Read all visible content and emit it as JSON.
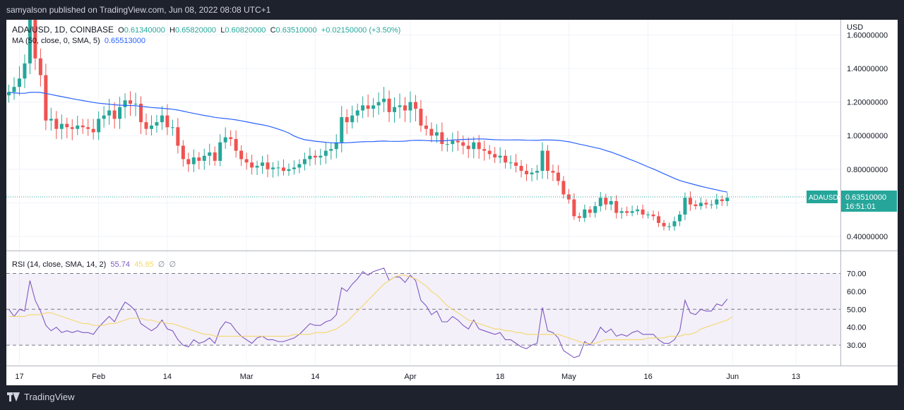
{
  "header": {
    "published": "samyalson published on TradingView.com, Jun 08, 2022 08:08 UTC+1"
  },
  "footer": {
    "brand": "TradingView"
  },
  "chart_data": [
    {
      "type": "candlestick",
      "legend": {
        "symbol": "ADA/USD, 1D, COINBASE",
        "o_label": "O",
        "o": "0.61340000",
        "h_label": "H",
        "h": "0.65820000",
        "l_label": "L",
        "l": "0.60820000",
        "c_label": "C",
        "c": "0.63510000",
        "change": "+0.02150000 (+3.50%)",
        "ma_label": "MA (50, close, 0, SMA, 5)",
        "ma_value": "0.65513000"
      },
      "axis_currency": "USD",
      "y_ticks": [
        0.4,
        0.6,
        0.8,
        1.0,
        1.2,
        1.4,
        1.6
      ],
      "y_tick_labels": [
        "0.40000000",
        "0.60000000",
        "0.80000000",
        "1.00000000",
        "1.20000000",
        "1.40000000",
        "1.60000000"
      ],
      "ylim": [
        0.32,
        1.69
      ],
      "last_price_label": "ADAUSD",
      "last_price": "0.63510000",
      "countdown": "16:51:01",
      "start_date": "2022-01-15",
      "x_ticks": [
        {
          "label": "17",
          "date": "2022-01-17"
        },
        {
          "label": "Feb",
          "date": "2022-02-01"
        },
        {
          "label": "14",
          "date": "2022-02-14"
        },
        {
          "label": "Mar",
          "date": "2022-03-01"
        },
        {
          "label": "14",
          "date": "2022-03-14"
        },
        {
          "label": "Apr",
          "date": "2022-04-01"
        },
        {
          "label": "18",
          "date": "2022-04-18"
        },
        {
          "label": "May",
          "date": "2022-05-01"
        },
        {
          "label": "16",
          "date": "2022-05-16"
        },
        {
          "label": "Jun",
          "date": "2022-06-01"
        },
        {
          "label": "13",
          "date": "2022-06-13"
        }
      ],
      "colors": {
        "up": "#26a69a",
        "down": "#ef5350",
        "ma": "#2962ff"
      },
      "close": [
        1.26,
        1.29,
        1.34,
        1.43,
        1.69,
        1.46,
        1.36,
        1.09,
        1.1,
        1.04,
        1.07,
        1.05,
        1.04,
        1.06,
        1.05,
        1.04,
        1.02,
        1.1,
        1.12,
        1.15,
        1.1,
        1.17,
        1.21,
        1.19,
        1.19,
        1.08,
        1.04,
        1.06,
        1.08,
        1.12,
        1.05,
        1.05,
        0.94,
        0.86,
        0.83,
        0.87,
        0.85,
        0.88,
        0.9,
        0.85,
        0.96,
        0.99,
        0.98,
        0.91,
        0.86,
        0.84,
        0.81,
        0.82,
        0.84,
        0.8,
        0.81,
        0.81,
        0.79,
        0.8,
        0.81,
        0.83,
        0.86,
        0.88,
        0.87,
        0.88,
        0.91,
        0.92,
        0.96,
        1.11,
        1.08,
        1.12,
        1.15,
        1.18,
        1.16,
        1.18,
        1.2,
        1.22,
        1.14,
        1.17,
        1.18,
        1.15,
        1.2,
        1.16,
        1.06,
        1.04,
        1.0,
        1.02,
        0.95,
        0.95,
        0.97,
        0.96,
        0.94,
        0.92,
        0.96,
        0.92,
        0.91,
        0.89,
        0.87,
        0.88,
        0.84,
        0.84,
        0.82,
        0.79,
        0.77,
        0.78,
        0.79,
        0.91,
        0.79,
        0.78,
        0.73,
        0.65,
        0.62,
        0.52,
        0.51,
        0.56,
        0.54,
        0.58,
        0.63,
        0.59,
        0.61,
        0.54,
        0.55,
        0.54,
        0.55,
        0.56,
        0.53,
        0.53,
        0.52,
        0.48,
        0.46,
        0.46,
        0.49,
        0.53,
        0.63,
        0.59,
        0.58,
        0.6,
        0.59,
        0.59,
        0.62,
        0.61,
        0.63
      ]
    },
    {
      "type": "line",
      "legend": {
        "label": "RSI (14, close, SMA, 14, 2)",
        "rsi_value": "55.74",
        "ma_value": "45.85",
        "null1": "∅",
        "null2": "∅"
      },
      "y_ticks": [
        30,
        40,
        50,
        60,
        70
      ],
      "y_tick_labels": [
        "30.00",
        "40.00",
        "50.00",
        "60.00",
        "70.00"
      ],
      "ylim": [
        19,
        82
      ],
      "band": [
        30,
        70
      ],
      "colors": {
        "rsi": "#7e57c2",
        "rsi_ma": "#f5d76e",
        "band": "#7e57c2"
      },
      "series": [
        {
          "name": "RSI",
          "values": [
            50,
            46,
            50,
            49,
            66,
            55,
            49,
            41,
            38,
            40,
            37,
            38,
            37,
            38,
            37,
            37,
            36,
            40,
            43,
            46,
            43,
            49,
            54,
            52,
            49,
            42,
            40,
            38,
            40,
            44,
            39,
            38,
            33,
            30,
            29,
            33,
            31,
            32,
            34,
            31,
            39,
            43,
            42,
            38,
            35,
            33,
            31,
            34,
            35,
            33,
            33,
            32,
            32,
            33,
            34,
            36,
            39,
            42,
            41,
            41,
            43,
            44,
            47,
            62,
            60,
            64,
            67,
            71,
            69,
            71,
            72,
            73,
            66,
            68,
            68,
            65,
            69,
            66,
            55,
            52,
            47,
            49,
            43,
            43,
            46,
            44,
            41,
            39,
            44,
            39,
            38,
            37,
            36,
            37,
            33,
            33,
            31,
            29,
            28,
            30,
            31,
            51,
            38,
            37,
            34,
            27,
            25,
            23,
            24,
            32,
            30,
            34,
            40,
            37,
            39,
            35,
            36,
            35,
            37,
            38,
            36,
            36,
            36,
            33,
            31,
            31,
            33,
            38,
            55,
            48,
            47,
            50,
            49,
            49,
            53,
            52,
            55.74
          ]
        },
        {
          "name": "RSI-based MA",
          "values": [
            46,
            46,
            46,
            46,
            47,
            47,
            47,
            48,
            48,
            47,
            46,
            45,
            44,
            43,
            42,
            42,
            41,
            41,
            41,
            42,
            42,
            43,
            44,
            45,
            45,
            45,
            44,
            44,
            43,
            43,
            42,
            42,
            41,
            40,
            39,
            38,
            37,
            36,
            36,
            35,
            35,
            35,
            35,
            35,
            35,
            35,
            35,
            35,
            35,
            35,
            35,
            35,
            35,
            35,
            36,
            36,
            36,
            36,
            37,
            37,
            37,
            38,
            39,
            41,
            43,
            46,
            49,
            52,
            55,
            58,
            61,
            64,
            66,
            68,
            69,
            69,
            68,
            67,
            65,
            63,
            60,
            58,
            55,
            52,
            50,
            48,
            46,
            44,
            43,
            42,
            41,
            40,
            39,
            39,
            38,
            38,
            37,
            37,
            36,
            36,
            36,
            36,
            36,
            36,
            36,
            35,
            34,
            33,
            32,
            31,
            31,
            31,
            32,
            33,
            33,
            33,
            33,
            33,
            33,
            33,
            33,
            34,
            34,
            34,
            34,
            35,
            35,
            35,
            36,
            36,
            37,
            39,
            40,
            41,
            42,
            43,
            44,
            45.85
          ]
        }
      ]
    }
  ]
}
